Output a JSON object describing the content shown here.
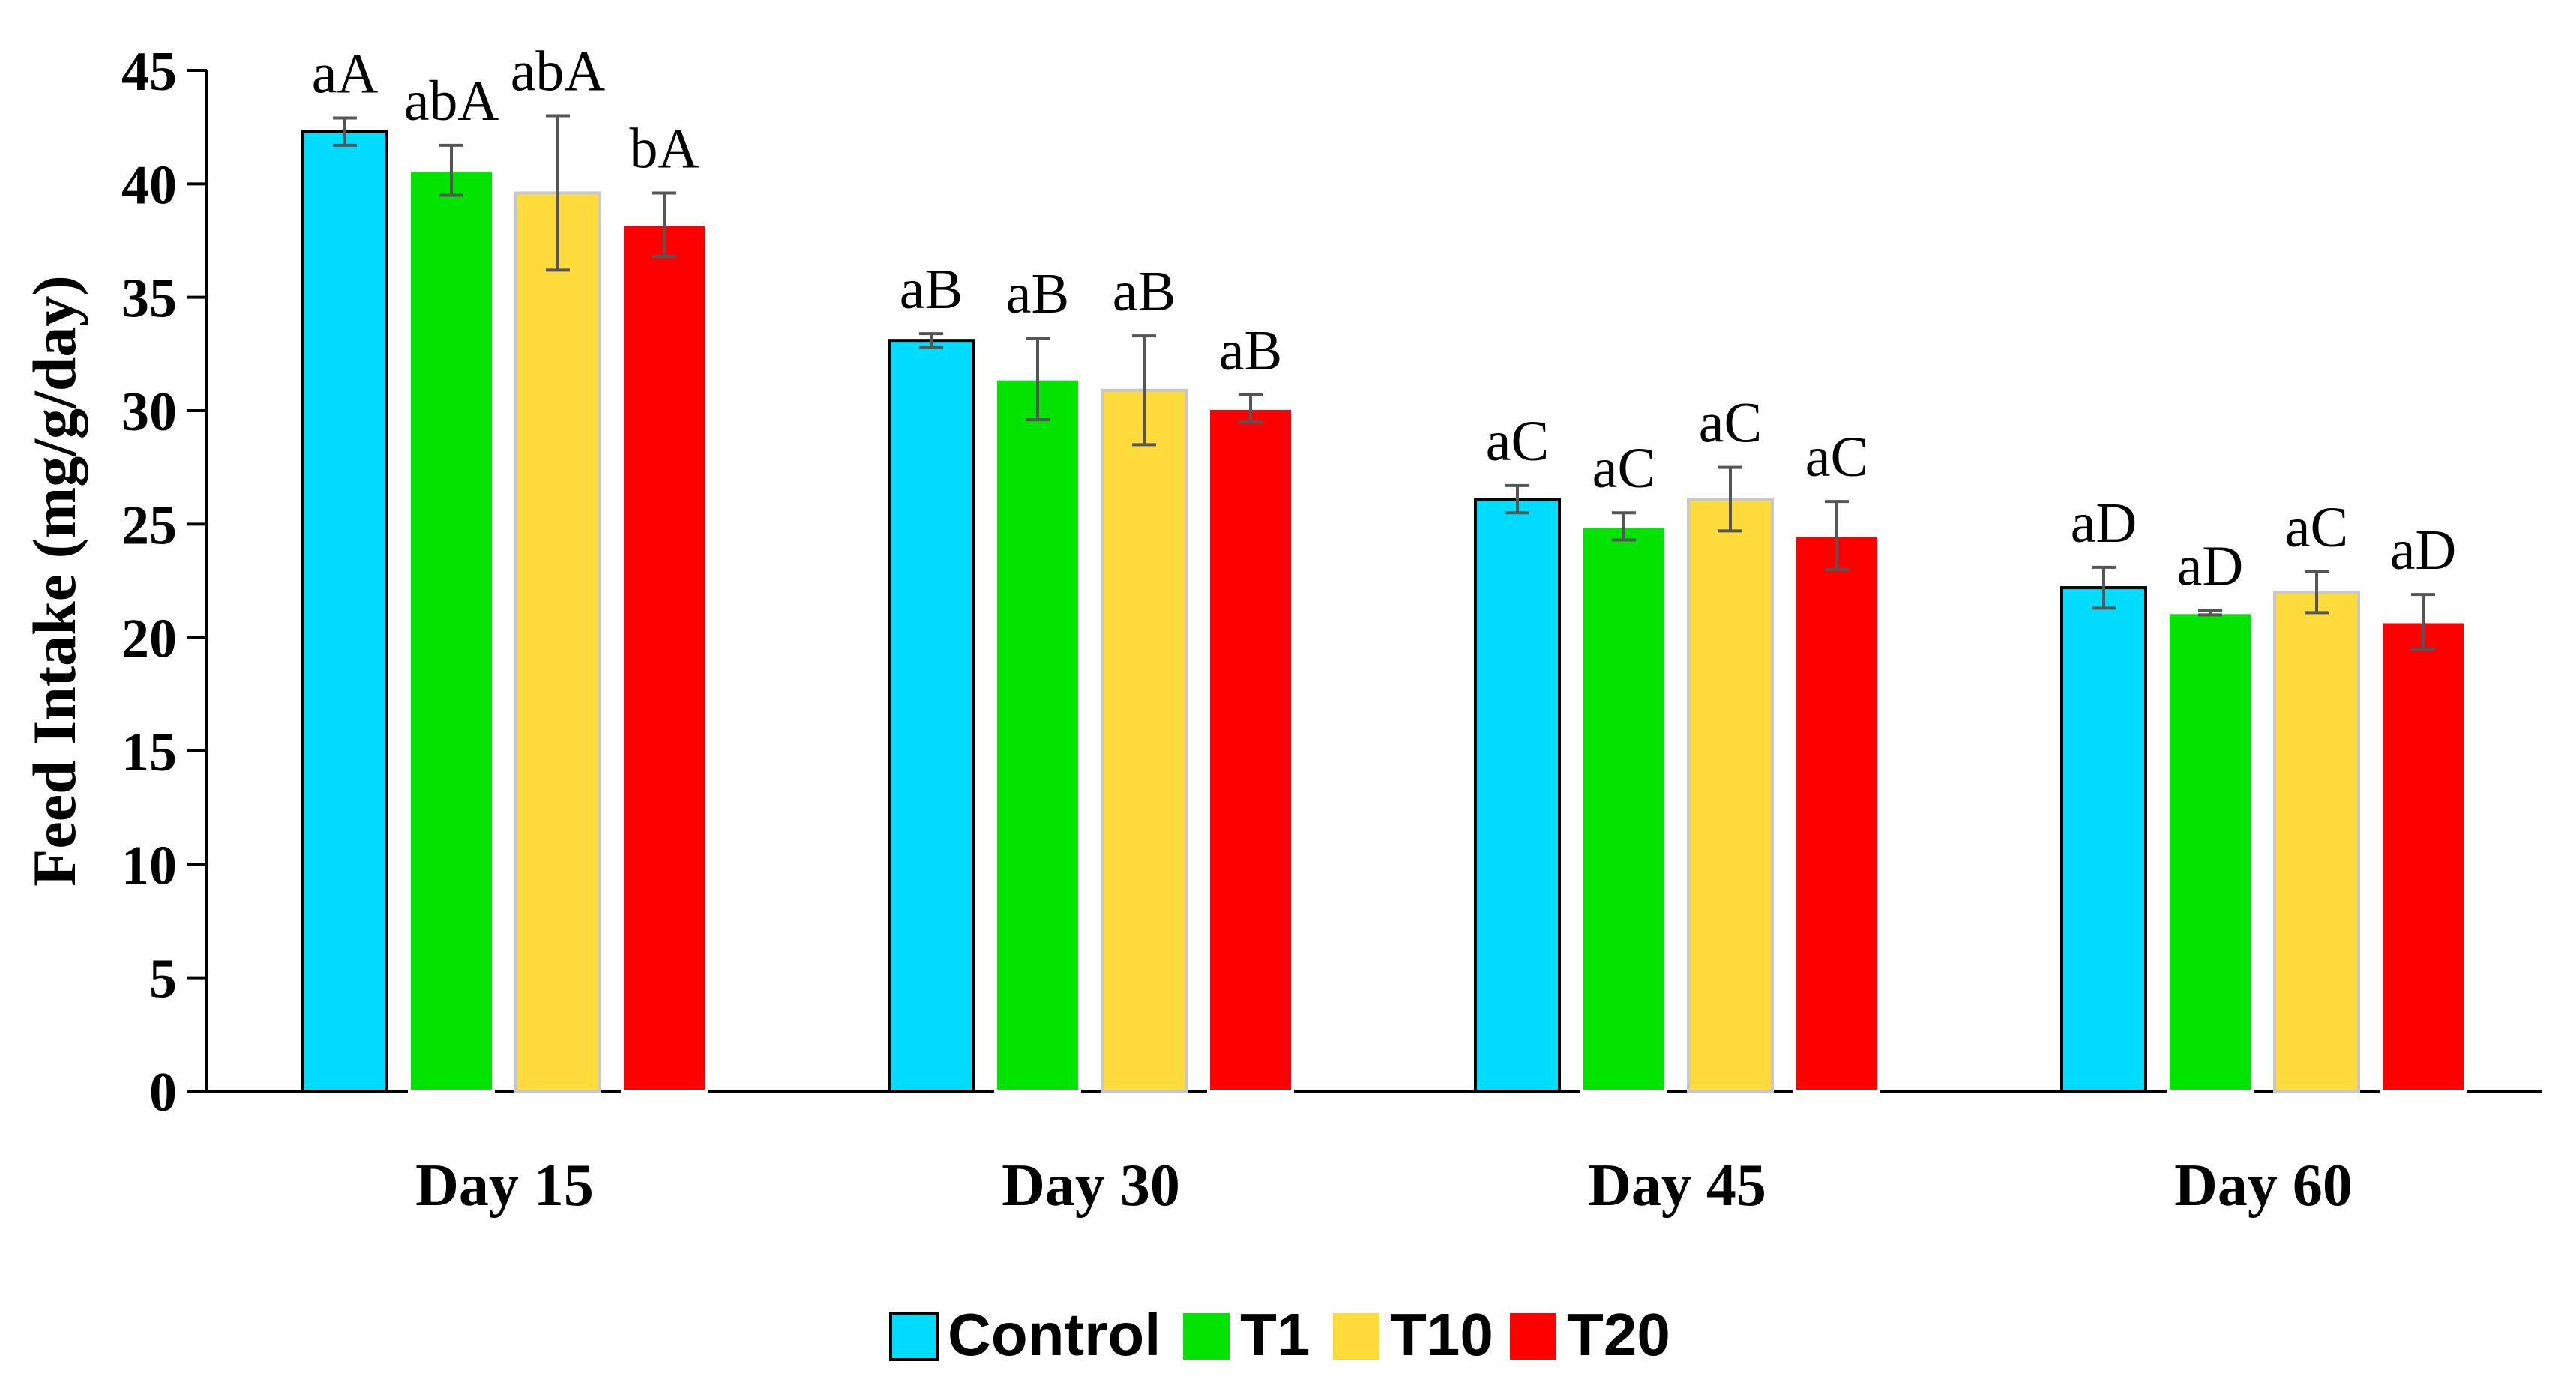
{
  "chart_data": {
    "type": "bar",
    "title": "",
    "xlabel": "",
    "ylabel": "Feed Intake (mg/g/day)",
    "ylim": [
      0,
      45
    ],
    "yticks": [
      0,
      5,
      10,
      15,
      20,
      25,
      30,
      35,
      40,
      45
    ],
    "grid": false,
    "legend_position": "bottom-center",
    "categories": [
      "Day 15",
      "Day 30",
      "Day 45",
      "Day 60"
    ],
    "series": [
      {
        "name": "Control",
        "color": "#00dcff",
        "stroke": "#000000",
        "values": [
          42.3,
          33.1,
          26.1,
          22.2
        ],
        "errors": [
          0.6,
          0.3,
          0.6,
          0.9
        ],
        "labels": [
          "aA",
          "aB",
          "aC",
          "aD"
        ]
      },
      {
        "name": "T1",
        "color": "#00e400",
        "stroke": "#ffffff",
        "values": [
          40.6,
          31.4,
          24.9,
          21.1
        ],
        "errors": [
          1.1,
          1.8,
          0.6,
          0.1
        ],
        "labels": [
          "abA",
          "aB",
          "aC",
          "aD"
        ]
      },
      {
        "name": "T10",
        "color": "#ffdc3c",
        "stroke": "#c8c8c8",
        "values": [
          39.6,
          30.9,
          26.1,
          22.0
        ],
        "errors": [
          3.4,
          2.4,
          1.4,
          0.9
        ],
        "labels": [
          "abA",
          "aB",
          "aC",
          "aC"
        ]
      },
      {
        "name": "T20",
        "color": "#ff0000",
        "stroke": "#ffffff",
        "values": [
          38.2,
          30.1,
          24.5,
          20.7
        ],
        "errors": [
          1.4,
          0.6,
          1.5,
          1.2
        ],
        "labels": [
          "bA",
          "aB",
          "aC",
          "aD"
        ]
      }
    ]
  }
}
